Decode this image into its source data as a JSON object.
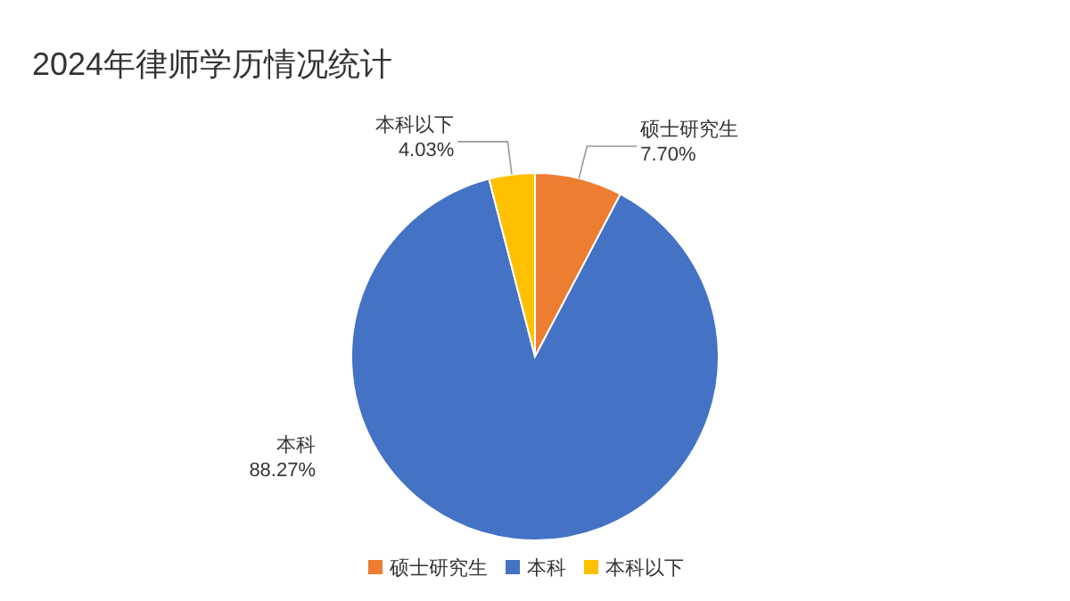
{
  "chart_data": {
    "type": "pie",
    "title": "2024年律师学历情况统计",
    "categories": [
      "硕士研究生",
      "本科",
      "本科以下"
    ],
    "values": [
      7.7,
      88.27,
      4.03
    ],
    "colors": [
      "#ed7d31",
      "#4472c4",
      "#ffc000"
    ],
    "value_labels": [
      "7.70%",
      "88.27%",
      "4.03%"
    ],
    "legend": "bottom"
  }
}
